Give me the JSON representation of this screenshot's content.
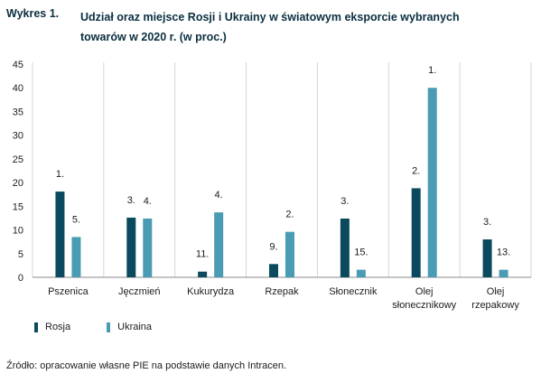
{
  "figure_number": "Wykres 1.",
  "figure_title_line1": "Udział oraz miejsce Rosji i Ukrainy w światowym eksporcie wybranych",
  "figure_title_line2": "towarów w 2020 r. (w proc.)",
  "source_note": "Źródło: opracowanie własne PIE na podstawie danych Intracen.",
  "colors": {
    "rosja": "#0b4a5e",
    "ukraina": "#4a9bb4"
  },
  "chart_data": {
    "type": "bar",
    "categories": [
      [
        "Pszenica"
      ],
      [
        "Jęczmień"
      ],
      [
        "Kukurydza"
      ],
      [
        "Rzepak"
      ],
      [
        "Słonecznik"
      ],
      [
        "Olej",
        "słonecznikowy"
      ],
      [
        "Olej",
        "rzepakowy"
      ]
    ],
    "series": [
      {
        "name": "Rosja",
        "values": [
          18.1,
          12.6,
          1.2,
          2.8,
          12.4,
          18.8,
          8.0
        ],
        "labels": [
          "1.",
          "3.",
          "11.",
          "9.",
          "3.",
          "2.",
          "3."
        ]
      },
      {
        "name": "Ukraina",
        "values": [
          8.5,
          12.4,
          13.7,
          9.6,
          1.6,
          40.0,
          1.6
        ],
        "labels": [
          "5.",
          "4.",
          "4.",
          "2.",
          "15.",
          "1.",
          "13."
        ]
      }
    ],
    "ylim": [
      0,
      45
    ],
    "yticks": [
      0,
      5,
      10,
      15,
      20,
      25,
      30,
      35,
      40,
      45
    ],
    "grid": false,
    "legend_position": "bottom-left"
  }
}
